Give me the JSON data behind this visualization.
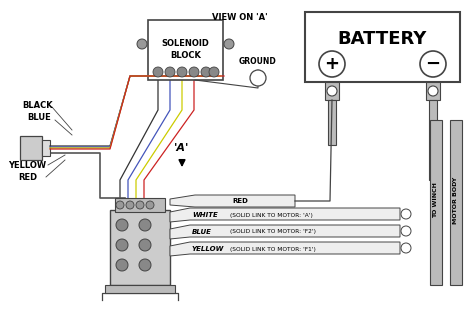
{
  "bg_color": "#ffffff",
  "line_color": "#444444",
  "battery_label": "BATTERY",
  "solenoid_label1": "SOLENOID",
  "solenoid_label2": "BLOCK",
  "view_label": "VIEW ON 'A'",
  "ground_label": "GROUND",
  "a_label": "'A'",
  "black_label": "BLACK",
  "blue_label": "BLUE",
  "yellow_label": "YELLOW",
  "red_label": "RED",
  "to_winch_label": "TO WINCH",
  "motor_body_label": "MOTOR BODY",
  "red_wire_label": "RED",
  "white_label": "WHITE",
  "blue_wire_label": "BLUE",
  "yellow_wire_label": "YELLOW",
  "solid_link_a": "(SOLID LINK TO MOTOR: 'A')",
  "solid_link_f2": "(SOLID LINK TO MOTOR: 'F2')",
  "solid_link_f1": "(SOLID LINK TO MOTOR: 'F1')"
}
